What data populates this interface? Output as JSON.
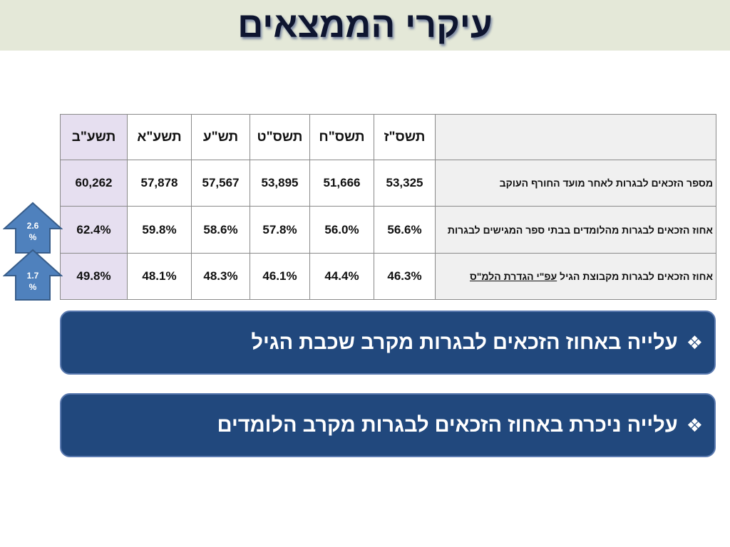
{
  "slide": {
    "title": "עיקרי הממצאים"
  },
  "table": {
    "years": [
      "תשס\"ז",
      "תשס\"ח",
      "תשס\"ט",
      "תש\"ע",
      "תשע\"א",
      "תשע\"ב"
    ],
    "rows": [
      {
        "label": "מספר הזכאים לבגרות לאחר מועד החורף העוקב",
        "values": [
          "53,325",
          "51,666",
          "53,895",
          "57,567",
          "57,878",
          "60,262"
        ]
      },
      {
        "label": "אחוז הזכאים לבגרות מהלומדים בבתי ספר המגישים לבגרות",
        "values": [
          "56.6%",
          "56.0%",
          "57.8%",
          "58.6%",
          "59.8%",
          "62.4%"
        ]
      },
      {
        "label_prefix": "אחוז הזכאים לבגרות מקבוצת הגיל ",
        "label_underlined": "עפ\"י הגדרת הלמ\"ס",
        "values": [
          "46.3%",
          "44.4%",
          "46.1%",
          "48.3%",
          "48.1%",
          "49.8%"
        ]
      }
    ]
  },
  "arrows": [
    {
      "value": "2.6",
      "unit": "%"
    },
    {
      "value": "1.7",
      "unit": "%"
    }
  ],
  "banners": [
    {
      "bullet": "❖",
      "text": "עלייה באחוז הזכאים לבגרות מקרב שכבת הגיל"
    },
    {
      "bullet": "❖",
      "text": "עלייה ניכרת באחוז הזכאים לבגרות מקרב הלומדים"
    }
  ],
  "colors": {
    "title_band": "#e4e8d8",
    "banner_fill": "#21487d",
    "arrow_fill": "#4f81bd",
    "latest_column": "#e6dff0"
  }
}
